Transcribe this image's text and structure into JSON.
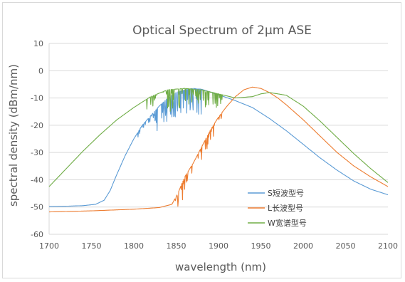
{
  "chart_data": {
    "type": "line",
    "title": "Optical Spectrum of 2μm ASE",
    "xlabel": "wavelength (nm)",
    "ylabel": "spectral density (dBm/nm)",
    "xlim": [
      1700,
      2100
    ],
    "ylim": [
      -60,
      10
    ],
    "xticks": [
      1700,
      1750,
      1800,
      1850,
      1900,
      1950,
      2000,
      2050,
      2100
    ],
    "yticks": [
      10,
      0,
      -10,
      -20,
      -30,
      -40,
      -50,
      -60
    ],
    "grid": true,
    "legend_position": "lower-right",
    "series": [
      {
        "name": "S短波型号",
        "color": "#5b9bd5",
        "points": [
          [
            1700,
            -49.8
          ],
          [
            1720,
            -49.7
          ],
          [
            1740,
            -49.5
          ],
          [
            1755,
            -49.0
          ],
          [
            1765,
            -47.5
          ],
          [
            1772,
            -44.0
          ],
          [
            1780,
            -38.0
          ],
          [
            1790,
            -31.0
          ],
          [
            1800,
            -25.0
          ],
          [
            1810,
            -20.0
          ],
          [
            1820,
            -16.5
          ],
          [
            1830,
            -13.0
          ],
          [
            1840,
            -10.0
          ],
          [
            1850,
            -8.0
          ],
          [
            1860,
            -7.0
          ],
          [
            1870,
            -6.5
          ],
          [
            1880,
            -6.8
          ],
          [
            1890,
            -7.8
          ],
          [
            1900,
            -8.8
          ],
          [
            1920,
            -11.0
          ],
          [
            1940,
            -13.5
          ],
          [
            1960,
            -17.5
          ],
          [
            1980,
            -22.0
          ],
          [
            2000,
            -27.0
          ],
          [
            2020,
            -32.0
          ],
          [
            2040,
            -36.5
          ],
          [
            2060,
            -40.5
          ],
          [
            2080,
            -43.5
          ],
          [
            2100,
            -45.5
          ]
        ],
        "dips": [
          [
            1805,
            1825,
            2
          ],
          [
            1825,
            1860,
            9
          ],
          [
            1860,
            1880,
            12
          ]
        ]
      },
      {
        "name": "L长波型号",
        "color": "#ed7d31",
        "points": [
          [
            1700,
            -51.8
          ],
          [
            1750,
            -51.4
          ],
          [
            1800,
            -50.8
          ],
          [
            1830,
            -50.2
          ],
          [
            1845,
            -49.0
          ],
          [
            1852,
            -45.0
          ],
          [
            1860,
            -39.0
          ],
          [
            1870,
            -34.0
          ],
          [
            1880,
            -28.0
          ],
          [
            1890,
            -22.0
          ],
          [
            1900,
            -17.0
          ],
          [
            1910,
            -13.0
          ],
          [
            1920,
            -9.5
          ],
          [
            1930,
            -7.0
          ],
          [
            1940,
            -6.0
          ],
          [
            1950,
            -6.5
          ],
          [
            1960,
            -8.0
          ],
          [
            1970,
            -10.0
          ],
          [
            1980,
            -12.5
          ],
          [
            2000,
            -18.0
          ],
          [
            2020,
            -24.0
          ],
          [
            2040,
            -30.0
          ],
          [
            2060,
            -35.0
          ],
          [
            2080,
            -39.0
          ],
          [
            2100,
            -42.5
          ]
        ],
        "dips": [
          [
            1848,
            1870,
            7
          ],
          [
            1870,
            1895,
            5
          ],
          [
            1895,
            1905,
            2
          ]
        ]
      },
      {
        "name": "W宽谱型号",
        "color": "#70ad47",
        "points": [
          [
            1700,
            -42.5
          ],
          [
            1720,
            -36.0
          ],
          [
            1740,
            -29.5
          ],
          [
            1760,
            -23.5
          ],
          [
            1780,
            -18.0
          ],
          [
            1800,
            -13.5
          ],
          [
            1820,
            -9.5
          ],
          [
            1840,
            -7.0
          ],
          [
            1860,
            -6.5
          ],
          [
            1880,
            -7.0
          ],
          [
            1900,
            -8.5
          ],
          [
            1920,
            -10.0
          ],
          [
            1940,
            -9.5
          ],
          [
            1950,
            -8.5
          ],
          [
            1960,
            -8.0
          ],
          [
            1980,
            -9.0
          ],
          [
            2000,
            -13.0
          ],
          [
            2020,
            -18.5
          ],
          [
            2040,
            -24.5
          ],
          [
            2060,
            -30.5
          ],
          [
            2080,
            -36.0
          ],
          [
            2100,
            -41.0
          ]
        ],
        "dips": [
          [
            1815,
            1840,
            4
          ],
          [
            1840,
            1870,
            8
          ],
          [
            1870,
            1905,
            6
          ]
        ]
      }
    ]
  }
}
